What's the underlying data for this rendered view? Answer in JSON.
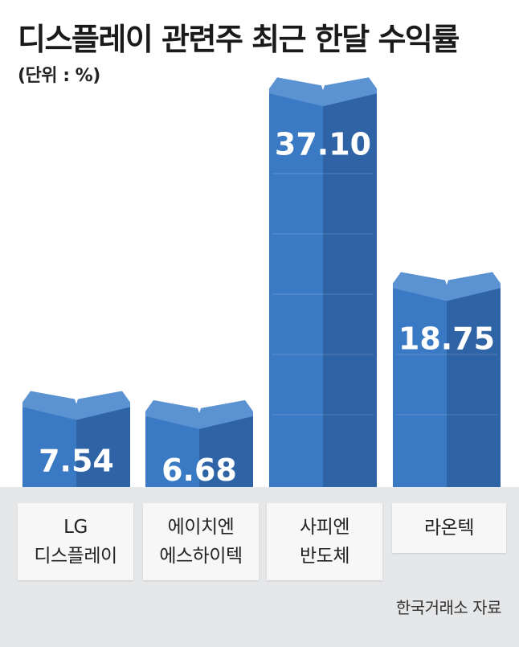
{
  "header": {
    "title": "디스플레이 관련주 최근 한달 수익률",
    "unit": "(단위 : %)"
  },
  "colors": {
    "bar_front": "#3a79c4",
    "bar_side": "#2e63a6",
    "bar_top": "#5b92d2",
    "label_text": "#ffffff"
  },
  "chart_data": {
    "type": "bar",
    "title": "디스플레이 관련주 최근 한달 수익률",
    "ylabel": "(단위 : %)",
    "categories": [
      "LG 디스플레이",
      "에이치엔 에스하이텍",
      "사피엔 반도체",
      "라온텍"
    ],
    "values": [
      7.54,
      6.68,
      37.1,
      18.75
    ],
    "value_labels": [
      "7.54",
      "6.68",
      "37.10",
      "18.75"
    ],
    "ylim": [
      0,
      40
    ]
  },
  "labels": [
    "LG\n디스플레이",
    "에이치엔\n에스하이텍",
    "사피엔\n반도체",
    "라온텍"
  ],
  "source": "한국거래소 자료"
}
